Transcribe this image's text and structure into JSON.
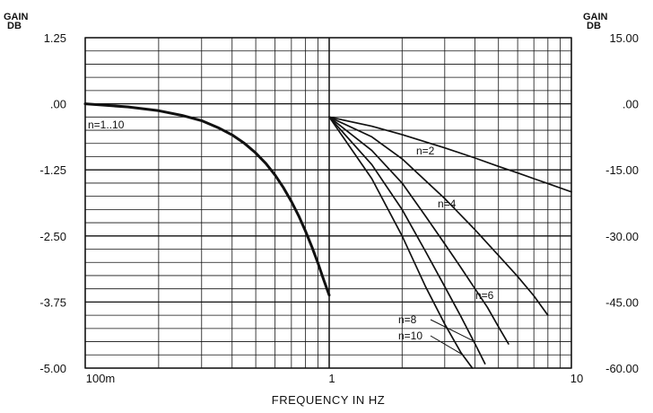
{
  "chart_data": [
    {
      "type": "line",
      "xlabel": "FREQUENCY IN HZ",
      "ylabel": "GAIN DB",
      "x_scale": "log",
      "xlim": [
        0.1,
        1
      ],
      "ylim": [
        -5.0,
        1.25
      ],
      "y_ticks": [
        "1.25",
        ".00",
        "-1.25",
        "-2.50",
        "-3.75",
        "-5.00"
      ],
      "x_ticks": [
        "100m",
        "1"
      ],
      "grid": true,
      "annotations": [
        "n=1..10"
      ],
      "series": [
        {
          "name": "n=1..10",
          "x": [
            0.1,
            0.15,
            0.2,
            0.25,
            0.3,
            0.35,
            0.4,
            0.45,
            0.5,
            0.55,
            0.6,
            0.65,
            0.7,
            0.75,
            0.8,
            0.85,
            0.9,
            0.95,
            1.0
          ],
          "y": [
            0.0,
            -0.06,
            -0.13,
            -0.22,
            -0.32,
            -0.45,
            -0.59,
            -0.75,
            -0.93,
            -1.13,
            -1.35,
            -1.59,
            -1.85,
            -2.12,
            -2.41,
            -2.71,
            -3.02,
            -3.33,
            -3.62
          ]
        }
      ]
    },
    {
      "type": "line",
      "xlabel": "FREQUENCY IN HZ",
      "ylabel": "GAIN DB",
      "x_scale": "log",
      "xlim": [
        1,
        10
      ],
      "ylim": [
        -60.0,
        15.0
      ],
      "y_ticks": [
        "15.00",
        ".00",
        "-15.00",
        "-30.00",
        "-45.00",
        "-60.00"
      ],
      "x_ticks": [
        "1",
        "10"
      ],
      "grid": true,
      "series": [
        {
          "name": "n=2",
          "x": [
            1.0,
            1.5,
            2.0,
            3.0,
            4.0,
            5.0,
            6.0,
            7.0,
            8.0,
            10.0
          ],
          "y": [
            -3.0,
            -5.1,
            -7.0,
            -10.0,
            -12.3,
            -14.2,
            -15.7,
            -17.0,
            -18.1,
            -20.0
          ]
        },
        {
          "name": "n=4",
          "x": [
            1.0,
            1.5,
            2.0,
            3.0,
            4.0,
            5.0,
            6.0,
            7.0,
            8.0
          ],
          "y": [
            -3.0,
            -7.5,
            -12.5,
            -21.5,
            -28.6,
            -34.4,
            -39.2,
            -43.6,
            -48.0
          ]
        },
        {
          "name": "n=6",
          "x": [
            1.0,
            1.5,
            2.0,
            2.5,
            3.0,
            3.5,
            4.0,
            4.5,
            5.0,
            5.5
          ],
          "y": [
            -3.0,
            -10.6,
            -18.0,
            -25.5,
            -31.8,
            -37.2,
            -42.0,
            -46.2,
            -50.6,
            -54.5
          ]
        },
        {
          "name": "n=8",
          "x": [
            1.0,
            1.5,
            2.0,
            2.5,
            3.0,
            3.5,
            4.0,
            4.4
          ],
          "y": [
            -3.0,
            -13.8,
            -24.0,
            -33.5,
            -41.5,
            -48.3,
            -54.5,
            -59.0
          ]
        },
        {
          "name": "n=10",
          "x": [
            1.0,
            1.5,
            2.0,
            2.5,
            3.0,
            3.5,
            3.9
          ],
          "y": [
            -3.0,
            -17.0,
            -30.0,
            -41.5,
            -50.0,
            -56.5,
            -60.0
          ]
        }
      ]
    }
  ],
  "left_unit": {
    "line1": "GAIN",
    "line2": "DB"
  },
  "right_unit": {
    "line1": "GAIN",
    "line2": "DB"
  },
  "colors": {
    "line": "#111111",
    "grid": "#111111",
    "background": "#ffffff"
  }
}
